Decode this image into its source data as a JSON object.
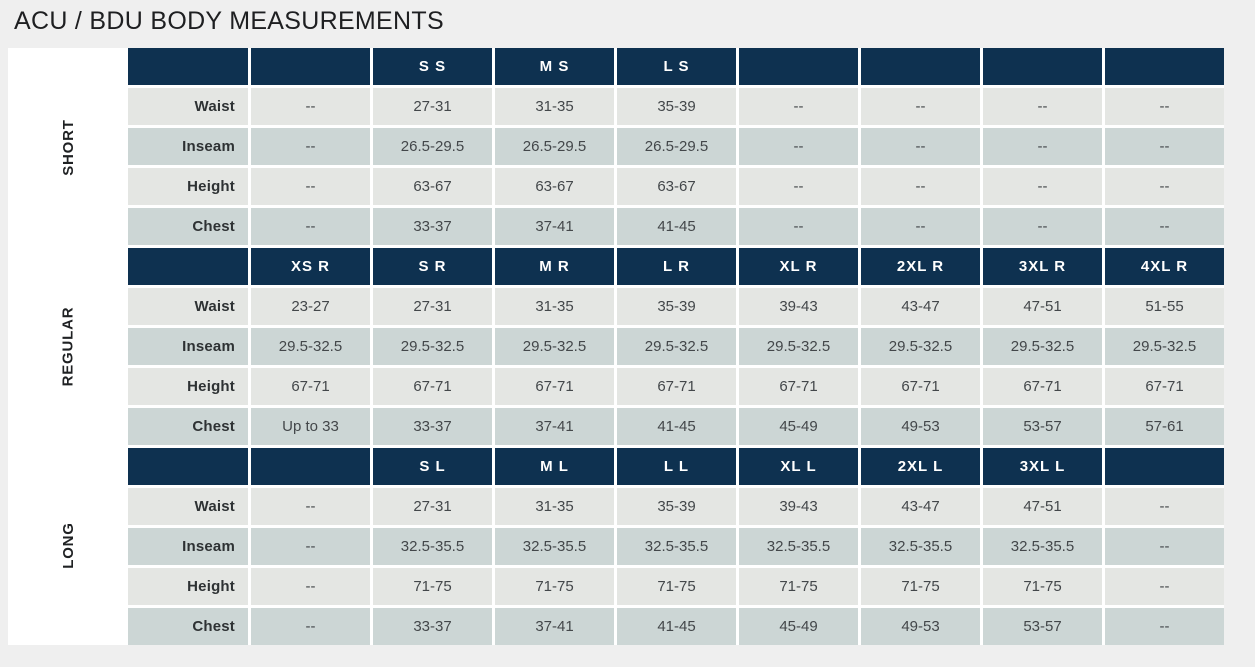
{
  "title": "ACU / BDU BODY MEASUREMENTS",
  "colors": {
    "header_navy": "#0e3150",
    "row_light": "#e4e6e3",
    "row_dark": "#ccd6d5",
    "page_background": "#efefef",
    "side_strip": "#ffffff",
    "header_text": "#ffffff",
    "value_text": "#43474a"
  },
  "chart_data": {
    "type": "table",
    "title": "ACU / BDU BODY MEASUREMENTS",
    "row_labels": [
      "Waist",
      "Inseam",
      "Height",
      "Chest"
    ],
    "empty_value": "--",
    "sections": [
      {
        "name": "SHORT",
        "size_headers": [
          "",
          "S S",
          "M S",
          "L S",
          "",
          "",
          "",
          ""
        ],
        "rows": [
          {
            "label": "Waist",
            "values": [
              "--",
              "27-31",
              "31-35",
              "35-39",
              "--",
              "--",
              "--",
              "--"
            ]
          },
          {
            "label": "Inseam",
            "values": [
              "--",
              "26.5-29.5",
              "26.5-29.5",
              "26.5-29.5",
              "--",
              "--",
              "--",
              "--"
            ]
          },
          {
            "label": "Height",
            "values": [
              "--",
              "63-67",
              "63-67",
              "63-67",
              "--",
              "--",
              "--",
              "--"
            ]
          },
          {
            "label": "Chest",
            "values": [
              "--",
              "33-37",
              "37-41",
              "41-45",
              "--",
              "--",
              "--",
              "--"
            ]
          }
        ]
      },
      {
        "name": "REGULAR",
        "size_headers": [
          "XS R",
          "S R",
          "M R",
          "L R",
          "XL R",
          "2XL R",
          "3XL R",
          "4XL R"
        ],
        "rows": [
          {
            "label": "Waist",
            "values": [
              "23-27",
              "27-31",
              "31-35",
              "35-39",
              "39-43",
              "43-47",
              "47-51",
              "51-55"
            ]
          },
          {
            "label": "Inseam",
            "values": [
              "29.5-32.5",
              "29.5-32.5",
              "29.5-32.5",
              "29.5-32.5",
              "29.5-32.5",
              "29.5-32.5",
              "29.5-32.5",
              "29.5-32.5"
            ]
          },
          {
            "label": "Height",
            "values": [
              "67-71",
              "67-71",
              "67-71",
              "67-71",
              "67-71",
              "67-71",
              "67-71",
              "67-71"
            ]
          },
          {
            "label": "Chest",
            "values": [
              "Up to 33",
              "33-37",
              "37-41",
              "41-45",
              "45-49",
              "49-53",
              "53-57",
              "57-61"
            ]
          }
        ]
      },
      {
        "name": "LONG",
        "size_headers": [
          "",
          "S L",
          "M L",
          "L L",
          "XL L",
          "2XL L",
          "3XL L",
          ""
        ],
        "rows": [
          {
            "label": "Waist",
            "values": [
              "--",
              "27-31",
              "31-35",
              "35-39",
              "39-43",
              "43-47",
              "47-51",
              "--"
            ]
          },
          {
            "label": "Inseam",
            "values": [
              "--",
              "32.5-35.5",
              "32.5-35.5",
              "32.5-35.5",
              "32.5-35.5",
              "32.5-35.5",
              "32.5-35.5",
              "--"
            ]
          },
          {
            "label": "Height",
            "values": [
              "--",
              "71-75",
              "71-75",
              "71-75",
              "71-75",
              "71-75",
              "71-75",
              "--"
            ]
          },
          {
            "label": "Chest",
            "values": [
              "--",
              "33-37",
              "37-41",
              "41-45",
              "45-49",
              "49-53",
              "53-57",
              "--"
            ]
          }
        ]
      }
    ]
  }
}
